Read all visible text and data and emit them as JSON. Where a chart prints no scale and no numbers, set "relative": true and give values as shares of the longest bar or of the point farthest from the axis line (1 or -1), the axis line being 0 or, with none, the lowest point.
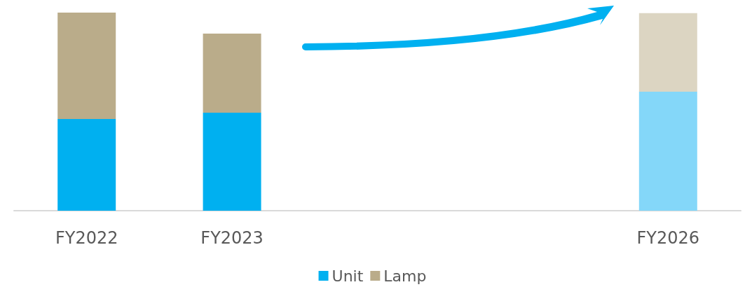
{
  "chart_data": {
    "type": "bar",
    "stacked": true,
    "relative": true,
    "legend": "bottom",
    "categories": [
      "FY2022",
      "FY2023",
      null,
      null,
      "FY2026"
    ],
    "series": [
      {
        "name": "Unit",
        "color": "#00b0f0",
        "colors": [
          "#00b0f0",
          "#00b0f0",
          "#00b0f0",
          "#00b0f0",
          "#84d7f9"
        ],
        "values": [
          0.463,
          0.495,
          null,
          null,
          0.601
        ]
      },
      {
        "name": "Lamp",
        "color": "#baac8a",
        "colors": [
          "#baac8a",
          "#baac8a",
          "#baac8a",
          "#baac8a",
          "#dcd5c2"
        ],
        "values": [
          0.537,
          0.399,
          null,
          null,
          0.396
        ]
      }
    ]
  }
}
